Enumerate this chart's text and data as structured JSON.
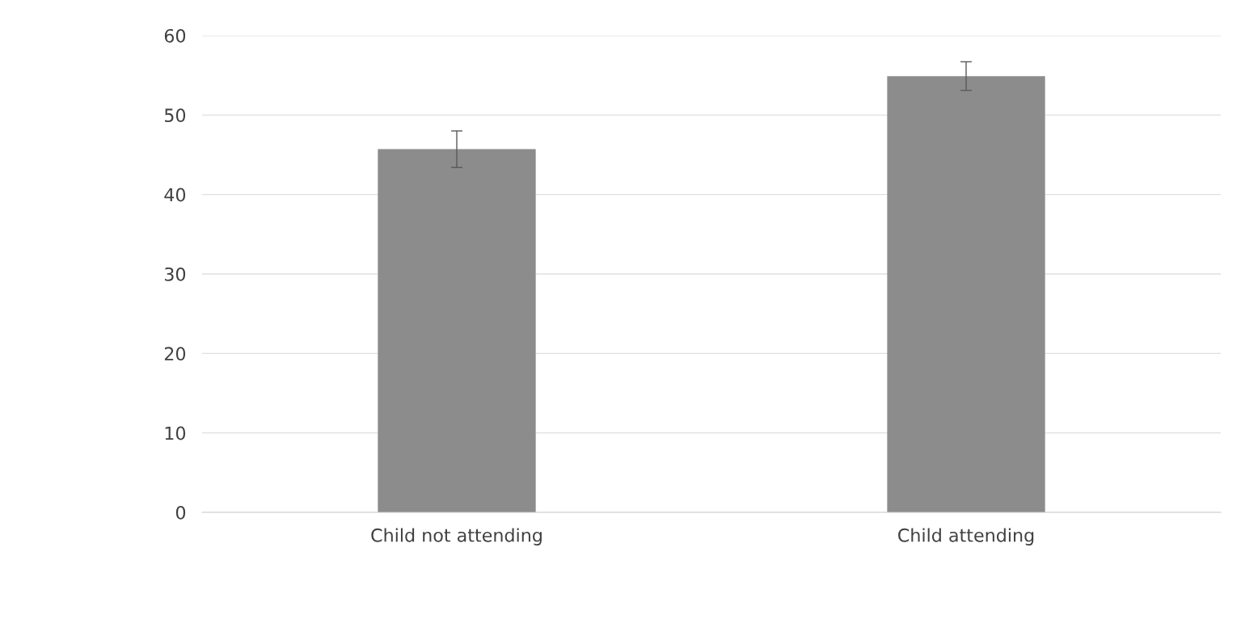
{
  "chart_data": {
    "type": "bar",
    "categories": [
      "Child not attending",
      "Child attending"
    ],
    "values": [
      45.7,
      54.9
    ],
    "errors": [
      2.3,
      1.8
    ],
    "color": "#8c8c8c",
    "ylim": [
      0,
      60
    ],
    "yticks": [
      0,
      10,
      20,
      30,
      40,
      50,
      60
    ],
    "grid": "y",
    "legend": false
  }
}
